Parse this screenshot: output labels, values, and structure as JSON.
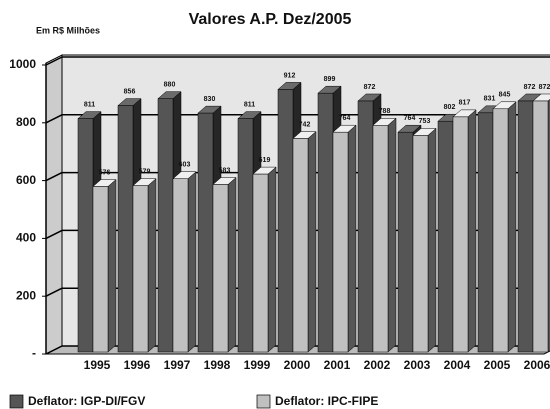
{
  "chart_data": {
    "type": "bar3d",
    "title": "Valores A.P. Dez/2005",
    "unit_label": "Em R$ Milhões",
    "categories": [
      "1995",
      "1996",
      "1997",
      "1998",
      "1999",
      "2000",
      "2001",
      "2002",
      "2003",
      "2004",
      "2005",
      "2006"
    ],
    "series": [
      {
        "name": "Deflator: IGP-DI/FGV",
        "color": "#555555",
        "values": [
          811,
          856,
          880,
          830,
          811,
          912,
          899,
          872,
          764,
          802,
          831,
          872
        ]
      },
      {
        "name": "Deflator: IPC-FIPE",
        "color": "#c0c0c0",
        "values": [
          576,
          579,
          603,
          583,
          619,
          742,
          764,
          788,
          753,
          817,
          845,
          872
        ]
      }
    ],
    "ylim": [
      0,
      1000
    ],
    "yticks": [
      {
        "value": 0,
        "label": "-"
      },
      200,
      400,
      600,
      800,
      1000
    ],
    "grid": true,
    "legend": "bottom"
  }
}
